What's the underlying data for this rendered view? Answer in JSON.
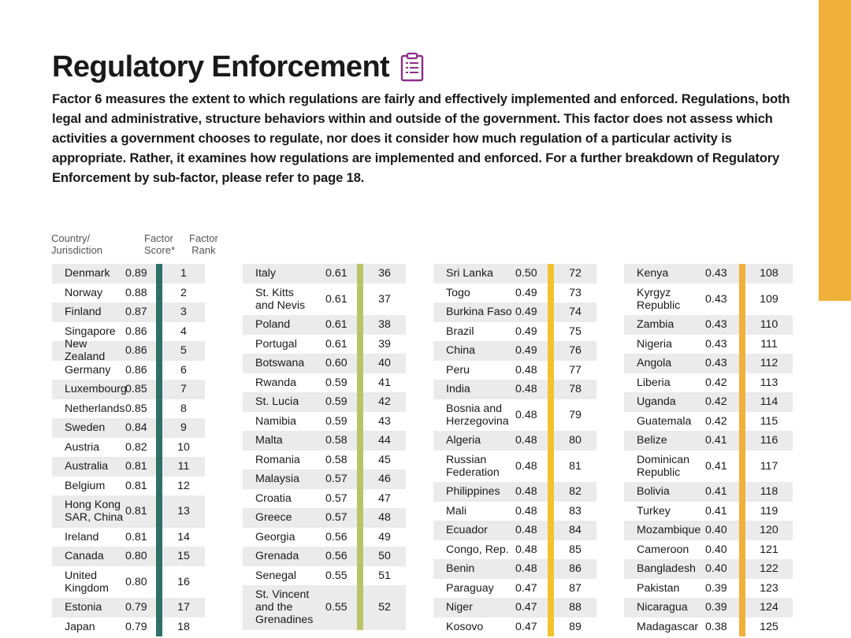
{
  "title": "Regulatory Enforcement",
  "title_icon": "clipboard-icon",
  "intro": "Factor 6 measures the extent to which regulations are fairly and effectively implemented and enforced. Regulations, both legal and administrative, structure behaviors within and outside of the government. This factor does not assess which activities a government chooses to regulate, nor does it consider how much regulation of a particular activity is appropriate. Rather, it examines how regulations are implemented and enforced. For a further breakdown of Regulatory Enforcement by sub-factor, please refer to page 18.",
  "headers": {
    "country": "Country/\nJurisdiction",
    "score": "Factor\nScore*",
    "rank": "Factor\nRank"
  },
  "colors": {
    "accent": "#f0b13b",
    "row_shade": "#ebebeb",
    "col1_bar": "#2e6f66",
    "col2_bar": "#b9c46a",
    "col3_bar": "#f3c22f",
    "col4_bar": "#f0b13b",
    "icon": "#8a2f86"
  },
  "columns": [
    {
      "rows": [
        {
          "country": "Denmark",
          "score": "0.89",
          "rank": "1"
        },
        {
          "country": "Norway",
          "score": "0.88",
          "rank": "2"
        },
        {
          "country": "Finland",
          "score": "0.87",
          "rank": "3"
        },
        {
          "country": "Singapore",
          "score": "0.86",
          "rank": "4"
        },
        {
          "country": "New Zealand",
          "score": "0.86",
          "rank": "5"
        },
        {
          "country": "Germany",
          "score": "0.86",
          "rank": "6"
        },
        {
          "country": "Luxembourg",
          "score": "0.85",
          "rank": "7"
        },
        {
          "country": "Netherlands",
          "score": "0.85",
          "rank": "8"
        },
        {
          "country": "Sweden",
          "score": "0.84",
          "rank": "9"
        },
        {
          "country": "Austria",
          "score": "0.82",
          "rank": "10"
        },
        {
          "country": "Australia",
          "score": "0.81",
          "rank": "11"
        },
        {
          "country": "Belgium",
          "score": "0.81",
          "rank": "12"
        },
        {
          "country": "Hong Kong\nSAR, China",
          "score": "0.81",
          "rank": "13"
        },
        {
          "country": "Ireland",
          "score": "0.81",
          "rank": "14"
        },
        {
          "country": "Canada",
          "score": "0.80",
          "rank": "15"
        },
        {
          "country": "United\nKingdom",
          "score": "0.80",
          "rank": "16"
        },
        {
          "country": "Estonia",
          "score": "0.79",
          "rank": "17"
        },
        {
          "country": "Japan",
          "score": "0.79",
          "rank": "18"
        }
      ]
    },
    {
      "rows": [
        {
          "country": "Italy",
          "score": "0.61",
          "rank": "36"
        },
        {
          "country": "St. Kitts\nand Nevis",
          "score": "0.61",
          "rank": "37"
        },
        {
          "country": "Poland",
          "score": "0.61",
          "rank": "38"
        },
        {
          "country": "Portugal",
          "score": "0.61",
          "rank": "39"
        },
        {
          "country": "Botswana",
          "score": "0.60",
          "rank": "40"
        },
        {
          "country": "Rwanda",
          "score": "0.59",
          "rank": "41"
        },
        {
          "country": "St. Lucia",
          "score": "0.59",
          "rank": "42"
        },
        {
          "country": "Namibia",
          "score": "0.59",
          "rank": "43"
        },
        {
          "country": "Malta",
          "score": "0.58",
          "rank": "44"
        },
        {
          "country": "Romania",
          "score": "0.58",
          "rank": "45"
        },
        {
          "country": "Malaysia",
          "score": "0.57",
          "rank": "46"
        },
        {
          "country": "Croatia",
          "score": "0.57",
          "rank": "47"
        },
        {
          "country": "Greece",
          "score": "0.57",
          "rank": "48"
        },
        {
          "country": "Georgia",
          "score": "0.56",
          "rank": "49"
        },
        {
          "country": "Grenada",
          "score": "0.56",
          "rank": "50"
        },
        {
          "country": "Senegal",
          "score": "0.55",
          "rank": "51"
        },
        {
          "country": "St. Vincent\nand the\nGrenadines",
          "score": "0.55",
          "rank": "52"
        }
      ]
    },
    {
      "rows": [
        {
          "country": "Sri Lanka",
          "score": "0.50",
          "rank": "72"
        },
        {
          "country": "Togo",
          "score": "0.49",
          "rank": "73"
        },
        {
          "country": "Burkina Faso",
          "score": "0.49",
          "rank": "74"
        },
        {
          "country": "Brazil",
          "score": "0.49",
          "rank": "75"
        },
        {
          "country": "China",
          "score": "0.49",
          "rank": "76"
        },
        {
          "country": "Peru",
          "score": "0.48",
          "rank": "77"
        },
        {
          "country": "India",
          "score": "0.48",
          "rank": "78"
        },
        {
          "country": "Bosnia and\nHerzegovina",
          "score": "0.48",
          "rank": "79"
        },
        {
          "country": "Algeria",
          "score": "0.48",
          "rank": "80"
        },
        {
          "country": "Russian\nFederation",
          "score": "0.48",
          "rank": "81"
        },
        {
          "country": "Philippines",
          "score": "0.48",
          "rank": "82"
        },
        {
          "country": "Mali",
          "score": "0.48",
          "rank": "83"
        },
        {
          "country": "Ecuador",
          "score": "0.48",
          "rank": "84"
        },
        {
          "country": "Congo, Rep.",
          "score": "0.48",
          "rank": "85"
        },
        {
          "country": "Benin",
          "score": "0.48",
          "rank": "86"
        },
        {
          "country": "Paraguay",
          "score": "0.47",
          "rank": "87"
        },
        {
          "country": "Niger",
          "score": "0.47",
          "rank": "88"
        },
        {
          "country": "Kosovo",
          "score": "0.47",
          "rank": "89"
        }
      ]
    },
    {
      "rows": [
        {
          "country": "Kenya",
          "score": "0.43",
          "rank": "108"
        },
        {
          "country": "Kyrgyz\nRepublic",
          "score": "0.43",
          "rank": "109"
        },
        {
          "country": "Zambia",
          "score": "0.43",
          "rank": "110"
        },
        {
          "country": "Nigeria",
          "score": "0.43",
          "rank": "111"
        },
        {
          "country": "Angola",
          "score": "0.43",
          "rank": "112"
        },
        {
          "country": "Liberia",
          "score": "0.42",
          "rank": "113"
        },
        {
          "country": "Uganda",
          "score": "0.42",
          "rank": "114"
        },
        {
          "country": "Guatemala",
          "score": "0.42",
          "rank": "115"
        },
        {
          "country": "Belize",
          "score": "0.41",
          "rank": "116"
        },
        {
          "country": "Dominican\nRepublic",
          "score": "0.41",
          "rank": "117"
        },
        {
          "country": "Bolivia",
          "score": "0.41",
          "rank": "118"
        },
        {
          "country": "Turkey",
          "score": "0.41",
          "rank": "119"
        },
        {
          "country": "Mozambique",
          "score": "0.40",
          "rank": "120"
        },
        {
          "country": "Cameroon",
          "score": "0.40",
          "rank": "121"
        },
        {
          "country": "Bangladesh",
          "score": "0.40",
          "rank": "122"
        },
        {
          "country": "Pakistan",
          "score": "0.39",
          "rank": "123"
        },
        {
          "country": "Nicaragua",
          "score": "0.39",
          "rank": "124"
        },
        {
          "country": "Madagascar",
          "score": "0.38",
          "rank": "125"
        }
      ]
    }
  ]
}
